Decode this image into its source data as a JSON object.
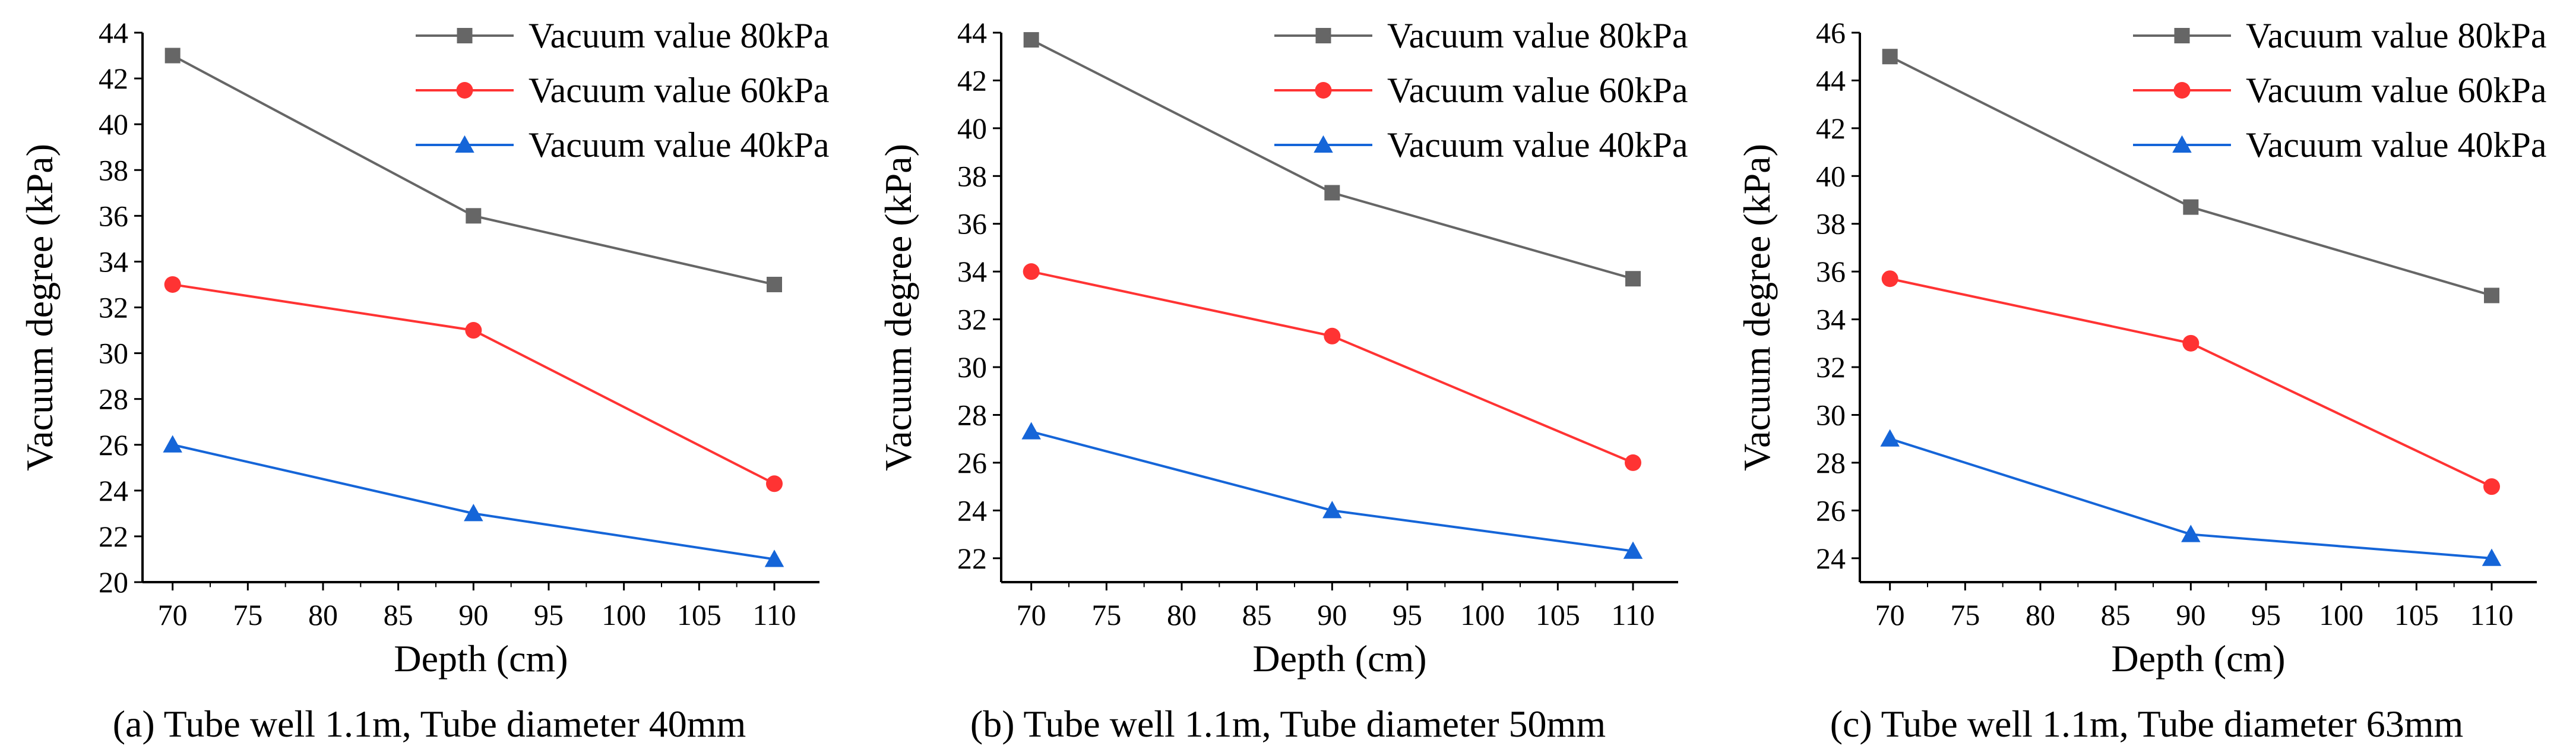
{
  "colors": {
    "series_80": "#666666",
    "series_60": "#ff3333",
    "series_40": "#1565d8",
    "axis": "#000000"
  },
  "chart_data": [
    {
      "type": "line",
      "caption": "(a)  Tube well 1.1m, Tube diameter 40mm",
      "xlabel": "Depth (cm)",
      "ylabel": "Vacuum degree (kPa)",
      "xlim": [
        68,
        113
      ],
      "ylim": [
        20,
        44
      ],
      "xticks": [
        70,
        75,
        80,
        85,
        90,
        95,
        100,
        105,
        110
      ],
      "yticks": [
        20,
        22,
        24,
        26,
        28,
        30,
        32,
        34,
        36,
        38,
        40,
        42,
        44
      ],
      "legend_position": "top-right",
      "x": [
        70,
        90,
        110
      ],
      "series": [
        {
          "name": "Vacuum value 80kPa",
          "marker": "square",
          "color_key": "series_80",
          "values": [
            43,
            36,
            33
          ]
        },
        {
          "name": "Vacuum value 60kPa",
          "marker": "circle",
          "color_key": "series_60",
          "values": [
            33,
            31,
            24.3
          ]
        },
        {
          "name": "Vacuum value 40kPa",
          "marker": "triangle",
          "color_key": "series_40",
          "values": [
            26,
            23,
            21
          ]
        }
      ]
    },
    {
      "type": "line",
      "caption": "(b)  Tube well 1.1m, Tube diameter 50mm",
      "xlabel": "Depth (cm)",
      "ylabel": "Vacuum degree (kPa)",
      "xlim": [
        68,
        113
      ],
      "ylim": [
        21,
        44
      ],
      "xticks": [
        70,
        75,
        80,
        85,
        90,
        95,
        100,
        105,
        110
      ],
      "yticks": [
        22,
        24,
        26,
        28,
        30,
        32,
        34,
        36,
        38,
        40,
        42,
        44
      ],
      "legend_position": "top-right",
      "x": [
        70,
        90,
        110
      ],
      "series": [
        {
          "name": "Vacuum value 80kPa",
          "marker": "square",
          "color_key": "series_80",
          "values": [
            43.7,
            37.3,
            33.7
          ]
        },
        {
          "name": "Vacuum value 60kPa",
          "marker": "circle",
          "color_key": "series_60",
          "values": [
            34,
            31.3,
            26
          ]
        },
        {
          "name": "Vacuum value 40kPa",
          "marker": "triangle",
          "color_key": "series_40",
          "values": [
            27.3,
            24,
            22.3
          ]
        }
      ]
    },
    {
      "type": "line",
      "caption": "(c)  Tube well 1.1m, Tube diameter 63mm",
      "xlabel": "Depth (cm)",
      "ylabel": "Vacuum degree (kPa)",
      "xlim": [
        68,
        113
      ],
      "ylim": [
        23,
        46
      ],
      "xticks": [
        70,
        75,
        80,
        85,
        90,
        95,
        100,
        105,
        110
      ],
      "yticks": [
        24,
        26,
        28,
        30,
        32,
        34,
        36,
        38,
        40,
        42,
        44,
        46
      ],
      "legend_position": "top-right",
      "x": [
        70,
        90,
        110
      ],
      "series": [
        {
          "name": "Vacuum value 80kPa",
          "marker": "square",
          "color_key": "series_80",
          "values": [
            45,
            38.7,
            35
          ]
        },
        {
          "name": "Vacuum value 60kPa",
          "marker": "circle",
          "color_key": "series_60",
          "values": [
            35.7,
            33,
            27
          ]
        },
        {
          "name": "Vacuum value 40kPa",
          "marker": "triangle",
          "color_key": "series_40",
          "values": [
            29,
            25,
            24
          ]
        }
      ]
    }
  ]
}
